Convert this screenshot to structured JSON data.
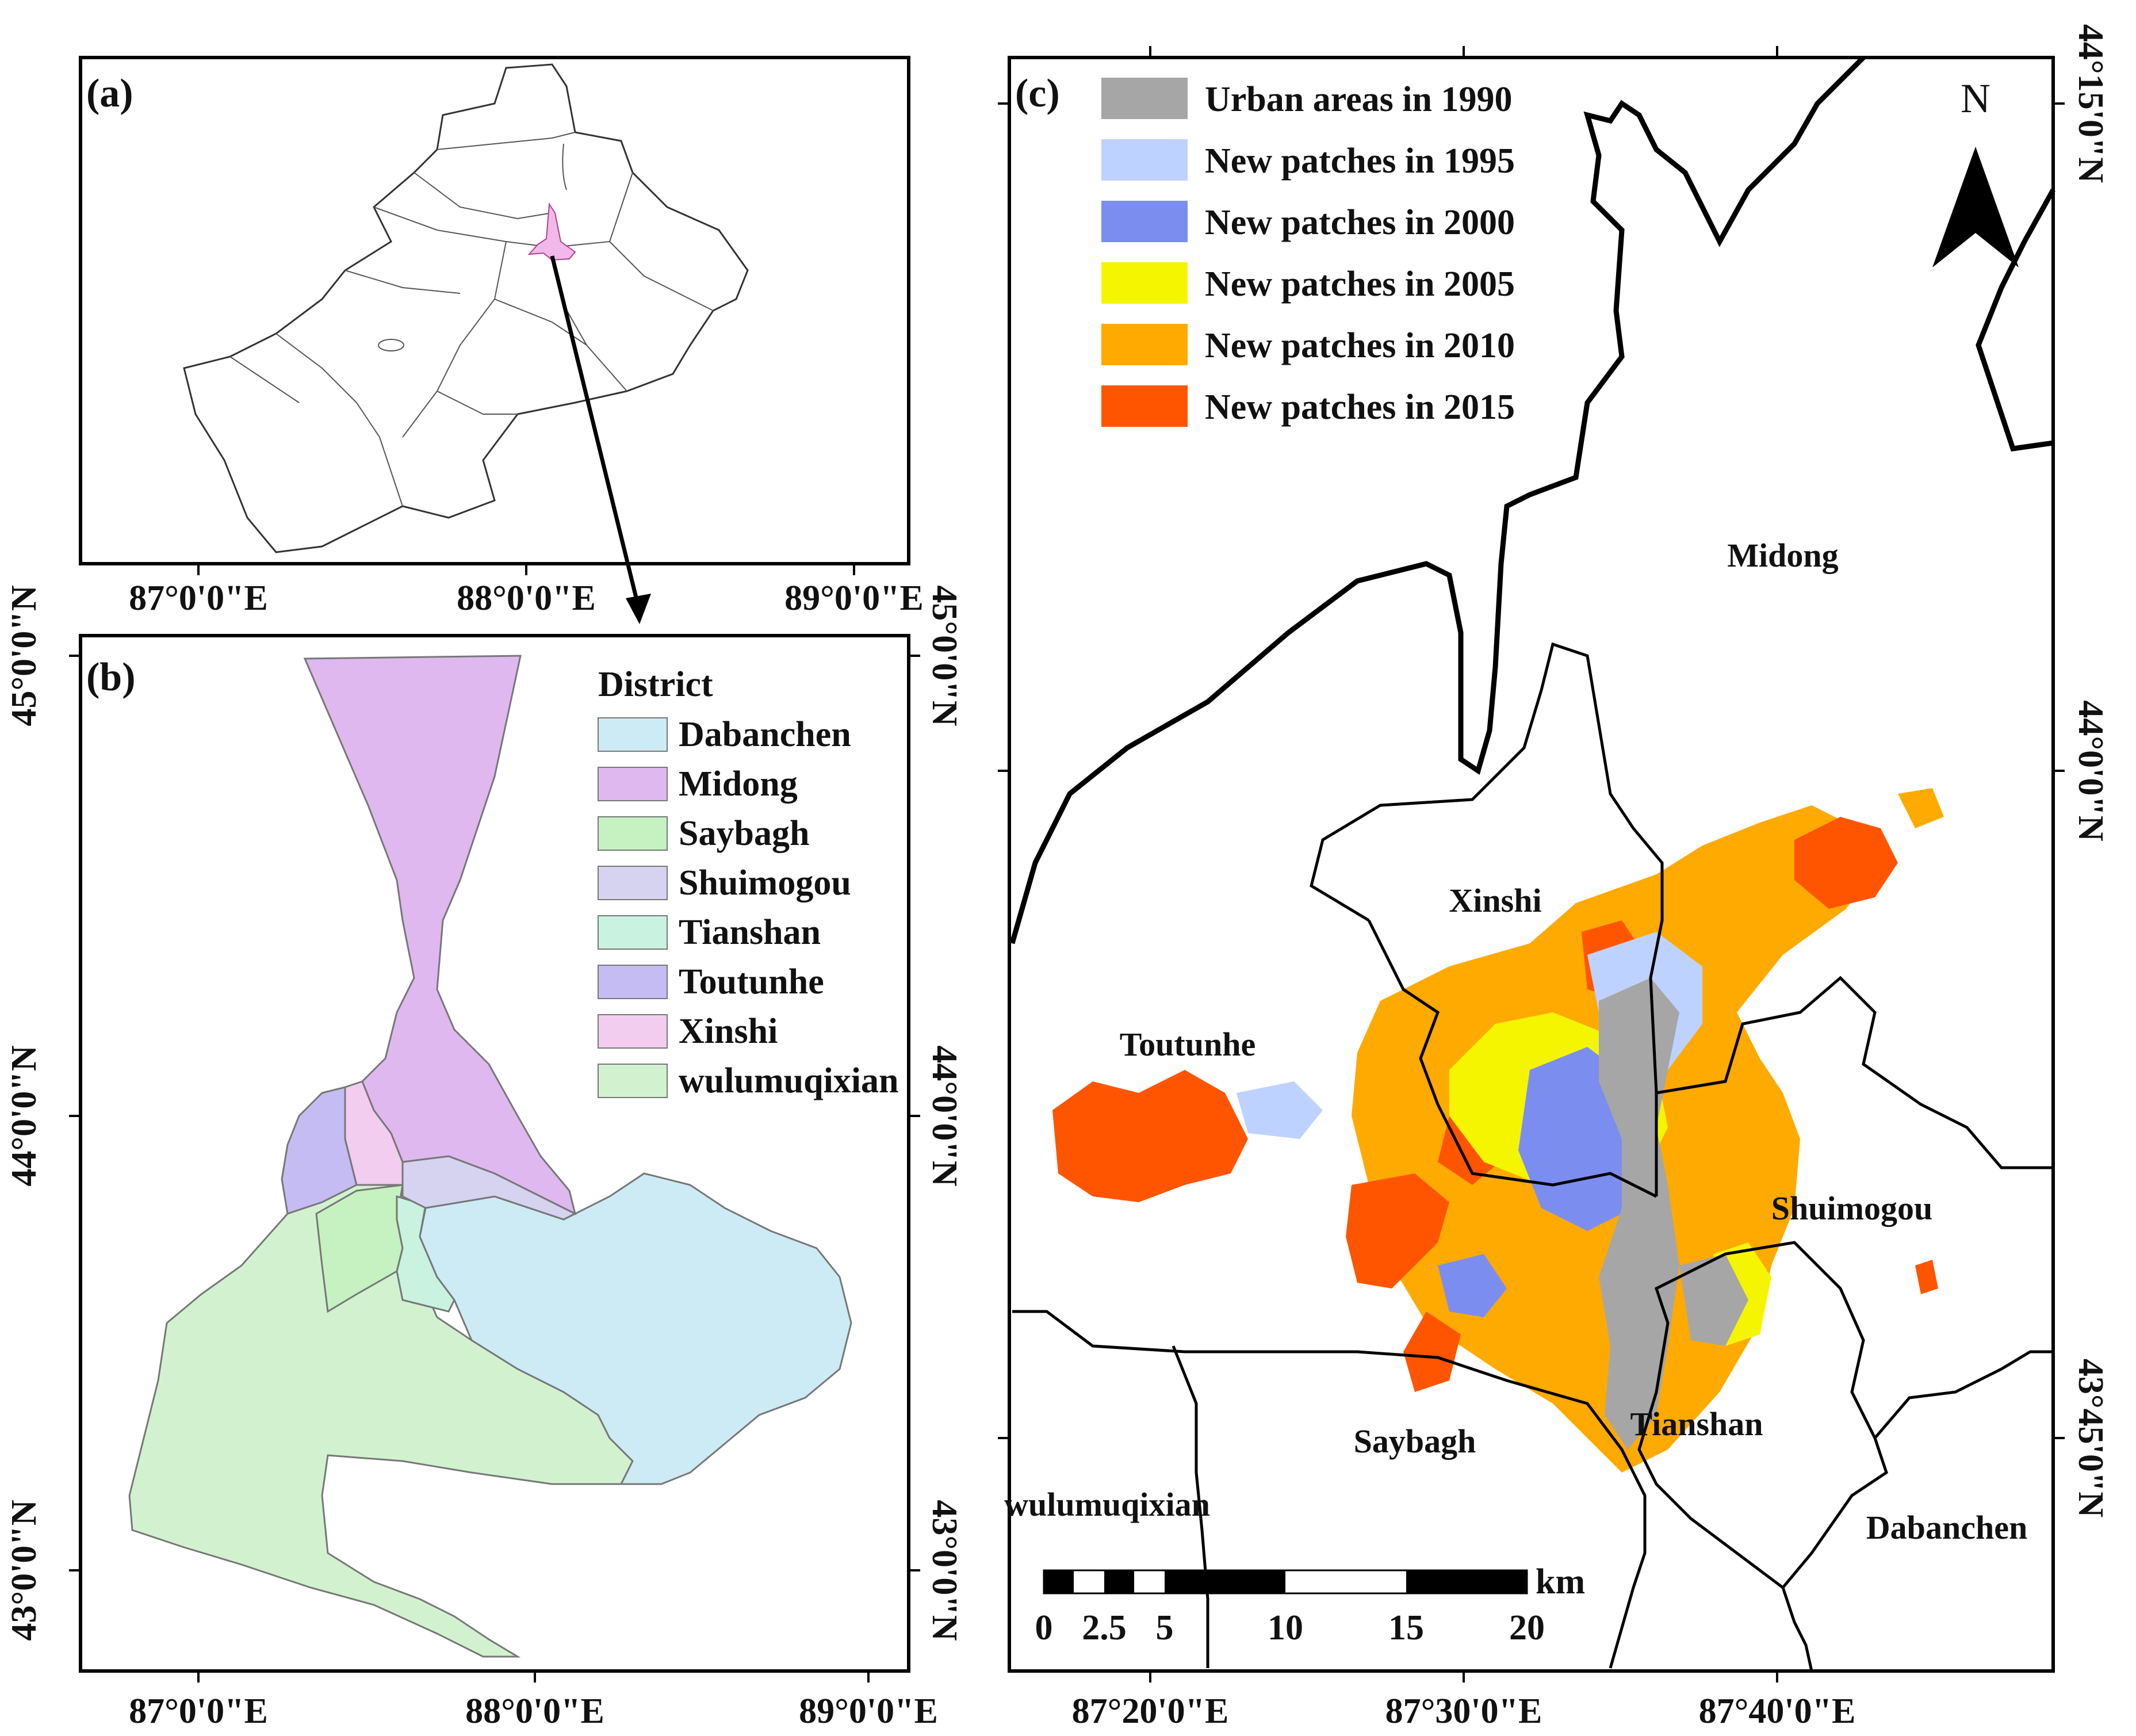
{
  "panel_a": {
    "label": "(a)",
    "x_ticks": [
      "87°0'0\"E",
      "88°0'0\"E",
      "89°0'0\"E"
    ]
  },
  "panel_b": {
    "label": "(b)",
    "x_ticks": [
      "87°0'0\"E",
      "88°0'0\"E",
      "89°0'0\"E"
    ],
    "y_ticks_left": [
      "45°0'0\"N",
      "44°0'0\"N",
      "43°0'0\"N"
    ],
    "y_ticks_right": [
      "45°0'0\"N",
      "44°0'0\"N",
      "43°0'0\"N"
    ],
    "legend": {
      "title": "District",
      "items": [
        {
          "name": "Dabanchen",
          "color": "#cdebf5"
        },
        {
          "name": "Midong",
          "color": "#dfb8f0"
        },
        {
          "name": "Saybagh",
          "color": "#c5f2c0"
        },
        {
          "name": "Shuimogou",
          "color": "#d6d3f0"
        },
        {
          "name": "Tianshan",
          "color": "#c9f2e0"
        },
        {
          "name": "Toutunhe",
          "color": "#c4bcf2"
        },
        {
          "name": "Xinshi",
          "color": "#f2cdf0"
        },
        {
          "name": "wulumuqixian",
          "color": "#d2f2cf"
        }
      ]
    }
  },
  "panel_c": {
    "label": "(c)",
    "x_ticks": [
      "87°20'0\"E",
      "87°30'0\"E",
      "87°40'0\"E"
    ],
    "y_ticks_right": [
      "44°15'0\"N",
      "44°0'0\"N",
      "43°45'0\"N"
    ],
    "north_arrow": "N",
    "legend": [
      {
        "name": "Urban areas in 1990",
        "color": "#a6a6a6"
      },
      {
        "name": "New patches in 1995",
        "color": "#bed2ff"
      },
      {
        "name": "New patches in 2000",
        "color": "#7b8ef0"
      },
      {
        "name": "New patches in 2005",
        "color": "#f5f500"
      },
      {
        "name": "New patches in 2010",
        "color": "#ffaa00"
      },
      {
        "name": "New patches in 2015",
        "color": "#ff5500"
      }
    ],
    "district_labels": [
      "Midong",
      "Xinshi",
      "Toutunhe",
      "Shuimogou",
      "Saybagh",
      "Tianshan",
      "wulumuqixian",
      "Dabanchen"
    ],
    "scale_bar": {
      "unit": "km",
      "ticks": [
        "0",
        "2.5",
        "5",
        "10",
        "15",
        "20"
      ]
    }
  }
}
